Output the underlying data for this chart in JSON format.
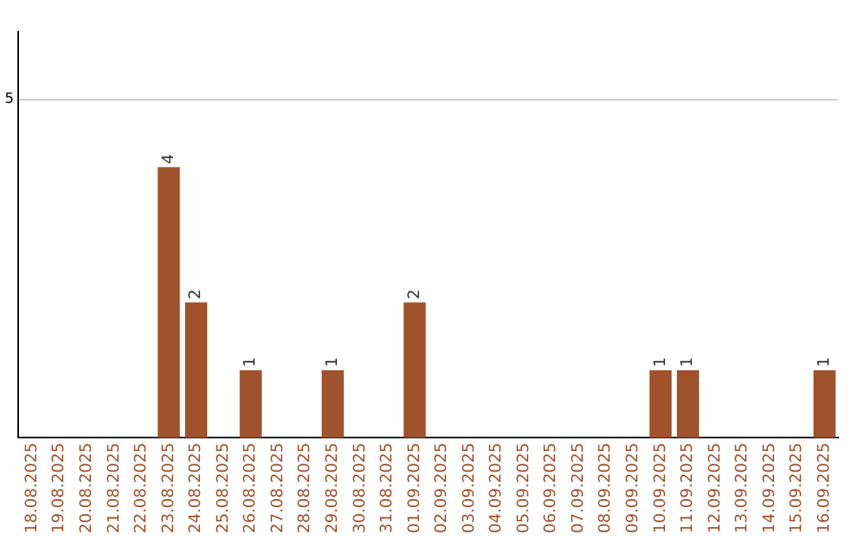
{
  "chart_data": {
    "type": "bar",
    "categories": [
      "18.08.2025",
      "19.08.2025",
      "20.08.2025",
      "21.08.2025",
      "22.08.2025",
      "23.08.2025",
      "24.08.2025",
      "25.08.2025",
      "26.08.2025",
      "27.08.2025",
      "28.08.2025",
      "29.08.2025",
      "30.08.2025",
      "31.08.2025",
      "01.09.2025",
      "02.09.2025",
      "03.09.2025",
      "04.09.2025",
      "05.09.2025",
      "06.09.2025",
      "07.09.2025",
      "08.09.2025",
      "09.09.2025",
      "10.09.2025",
      "11.09.2025",
      "12.09.2025",
      "13.09.2025",
      "14.09.2025",
      "15.09.2025",
      "16.09.2025"
    ],
    "values": [
      null,
      null,
      null,
      null,
      null,
      4,
      2,
      null,
      1,
      null,
      null,
      1,
      null,
      null,
      2,
      null,
      null,
      null,
      null,
      null,
      null,
      null,
      null,
      1,
      1,
      null,
      null,
      null,
      null,
      1
    ],
    "color": "#a0522d",
    "ylim": [
      0,
      6
    ],
    "yticks": [
      5
    ],
    "grid": "y",
    "data_labels": true,
    "legend": false
  }
}
